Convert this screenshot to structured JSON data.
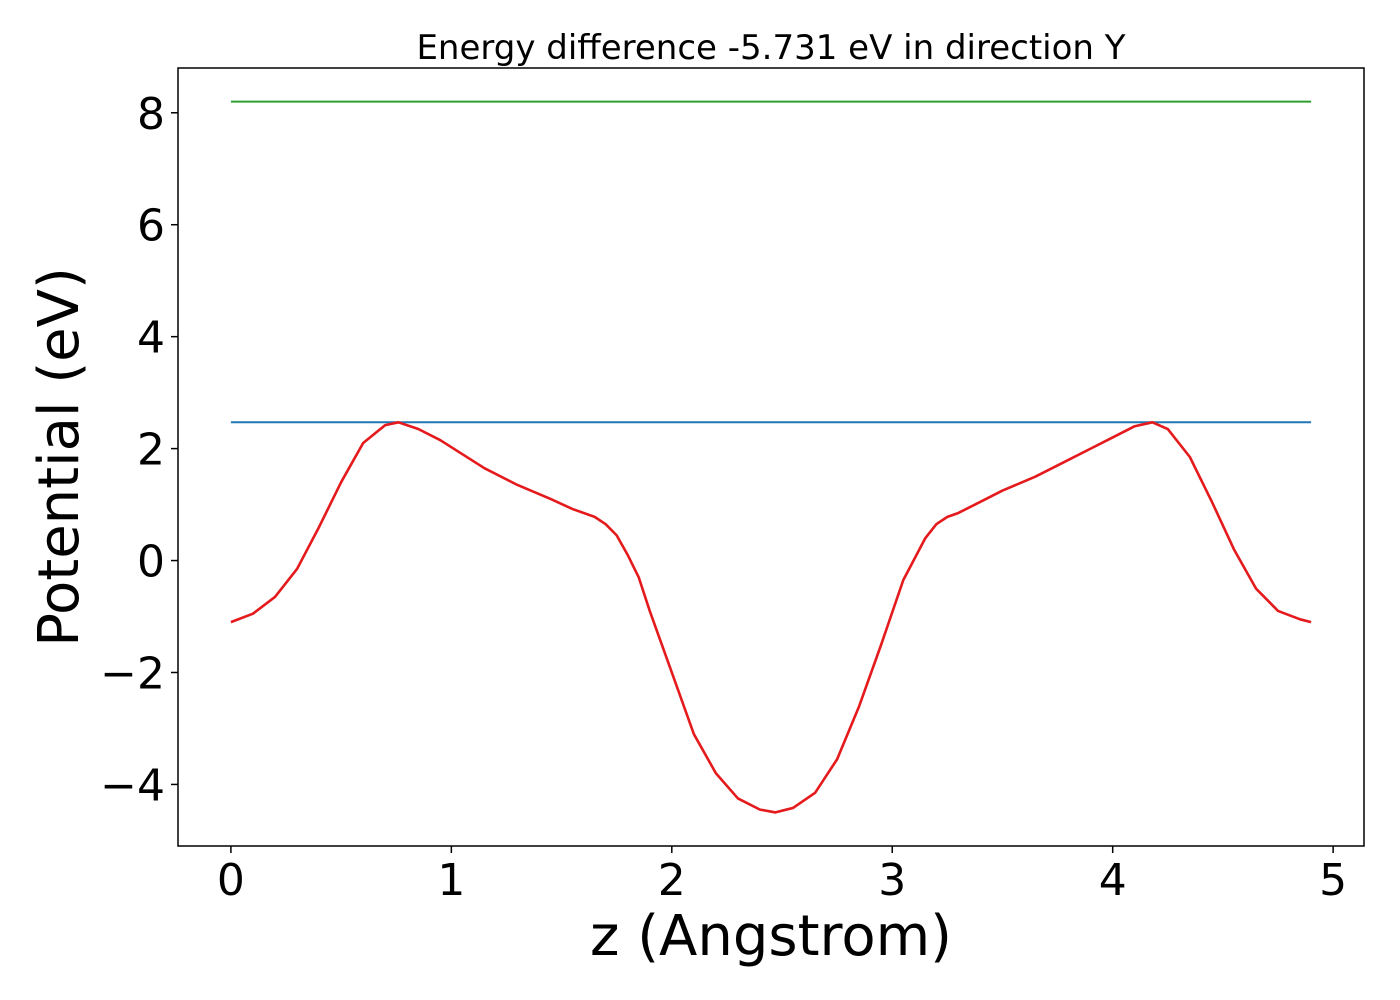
{
  "chart_data": {
    "type": "line",
    "title": "Energy difference -5.731 eV in direction Y",
    "xlabel": "z (Angstrom)",
    "ylabel": "Potential (eV)",
    "xlim": [
      -0.24,
      5.14
    ],
    "ylim": [
      -5.1,
      8.8
    ],
    "x_ticks": [
      0,
      1,
      2,
      3,
      4,
      5
    ],
    "x_tick_labels": [
      "0",
      "1",
      "2",
      "3",
      "4",
      "5"
    ],
    "y_ticks": [
      -4,
      -2,
      0,
      2,
      4,
      6,
      8
    ],
    "y_tick_labels": [
      "−4",
      "−2",
      "0",
      "2",
      "4",
      "6",
      "8"
    ],
    "grid": false,
    "legend": "none",
    "series": [
      {
        "color": "#2ca02c",
        "x": [
          0,
          4.9
        ],
        "y": [
          8.2,
          8.2
        ]
      },
      {
        "color": "#1f77b4",
        "x": [
          0,
          4.9
        ],
        "y": [
          2.47,
          2.47
        ]
      },
      {
        "color": "#e41a1c",
        "x": [
          0,
          0.1,
          0.2,
          0.3,
          0.4,
          0.5,
          0.6,
          0.7,
          0.76,
          0.85,
          0.95,
          1.05,
          1.15,
          1.3,
          1.45,
          1.55,
          1.65,
          1.7,
          1.75,
          1.8,
          1.85,
          1.9,
          2.0,
          2.1,
          2.2,
          2.3,
          2.4,
          2.47,
          2.55,
          2.65,
          2.75,
          2.85,
          2.95,
          3.05,
          3.15,
          3.2,
          3.25,
          3.3,
          3.4,
          3.5,
          3.65,
          3.8,
          3.9,
          4.0,
          4.1,
          4.18,
          4.25,
          4.35,
          4.45,
          4.55,
          4.65,
          4.75,
          4.85,
          4.9
        ],
        "y": [
          -1.1,
          -0.95,
          -0.65,
          -0.15,
          0.6,
          1.4,
          2.1,
          2.42,
          2.47,
          2.35,
          2.15,
          1.9,
          1.65,
          1.35,
          1.1,
          0.92,
          0.78,
          0.65,
          0.45,
          0.1,
          -0.3,
          -0.9,
          -2.0,
          -3.1,
          -3.8,
          -4.25,
          -4.45,
          -4.5,
          -4.42,
          -4.15,
          -3.55,
          -2.6,
          -1.5,
          -0.35,
          0.4,
          0.65,
          0.78,
          0.85,
          1.05,
          1.25,
          1.5,
          1.8,
          2.0,
          2.2,
          2.4,
          2.47,
          2.35,
          1.85,
          1.05,
          0.2,
          -0.5,
          -0.9,
          -1.05,
          -1.1
        ]
      }
    ]
  }
}
